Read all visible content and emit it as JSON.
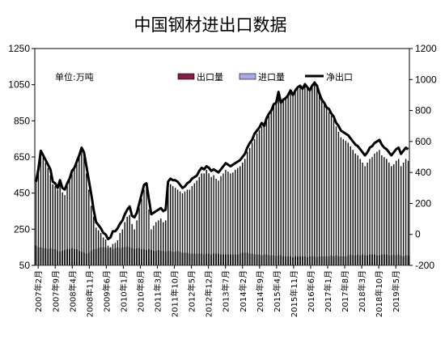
{
  "chart_data": {
    "type": "bar",
    "title": "中国钢材进出口数据",
    "unit_label": "单位:万吨",
    "legend": {
      "placement": "top",
      "entries": [
        {
          "key": "export",
          "label": "出口量",
          "mark": "bar",
          "color": "#8b1a4a"
        },
        {
          "key": "import",
          "label": "进口量",
          "mark": "bar",
          "color": "#a9a9ee"
        },
        {
          "key": "net",
          "label": "净出口",
          "mark": "line",
          "color": "#000000"
        }
      ]
    },
    "left_axis": {
      "min": 50,
      "max": 1250,
      "ticks": [
        50,
        250,
        450,
        650,
        850,
        1050,
        1250
      ]
    },
    "right_axis": {
      "min": -200,
      "max": 1200,
      "ticks": [
        -200,
        0,
        200,
        400,
        600,
        800,
        1000,
        1200
      ]
    },
    "x_labels": [
      "2007年2月",
      "2007年9月",
      "2008年4月",
      "2008年11月",
      "2009年6月",
      "2010年1月",
      "2010年8月",
      "2011年3月",
      "2011年10月",
      "2012年5月",
      "2012年12月",
      "2013年7月",
      "2014年2月",
      "2014年9月",
      "2015年4月",
      "2015年11月",
      "2016年6月",
      "2017年1月",
      "2017年8月",
      "2018年3月",
      "2018年10月",
      "2019年5月"
    ],
    "series": [
      {
        "key": "export",
        "name": "出口量",
        "axis": "left",
        "values": [
          530,
          565,
          680,
          655,
          620,
          590,
          550,
          500,
          490,
          470,
          520,
          455,
          440,
          490,
          520,
          560,
          600,
          640,
          660,
          690,
          650,
          560,
          470,
          380,
          320,
          260,
          245,
          230,
          205,
          195,
          160,
          150,
          170,
          175,
          190,
          230,
          250,
          290,
          320,
          330,
          280,
          250,
          300,
          370,
          420,
          470,
          480,
          360,
          250,
          270,
          290,
          300,
          310,
          290,
          300,
          480,
          500,
          490,
          480,
          470,
          460,
          450,
          460,
          470,
          470,
          490,
          505,
          520,
          540,
          560,
          560,
          580,
          560,
          540,
          550,
          530,
          520,
          545,
          560,
          580,
          570,
          560,
          565,
          580,
          590,
          600,
          620,
          640,
          680,
          700,
          730,
          750,
          780,
          800,
          820,
          820,
          850,
          880,
          900,
          940,
          950,
          1000,
          950,
          960,
          980,
          1000,
          1020,
          990,
          1020,
          1040,
          1050,
          1040,
          1060,
          1040,
          1020,
          1050,
          1070,
          1050,
          1000,
          960,
          940,
          920,
          900,
          880,
          860,
          820,
          790,
          760,
          750,
          740,
          730,
          710,
          690,
          670,
          660,
          640,
          620,
          600,
          620,
          640,
          650,
          670,
          680,
          690,
          660,
          650,
          640,
          620,
          600,
          610,
          630,
          640,
          600,
          620,
          640,
          630
        ],
        "note": "monthly"
      },
      {
        "key": "import",
        "name": "进口量",
        "axis": "left",
        "values": [
          160,
          150,
          150,
          145,
          145,
          140,
          145,
          140,
          140,
          130,
          125,
          130,
          135,
          140,
          140,
          145,
          140,
          140,
          130,
          125,
          120,
          115,
          120,
          130,
          140,
          140,
          145,
          150,
          150,
          150,
          145,
          150,
          140,
          145,
          150,
          145,
          150,
          150,
          155,
          150,
          145,
          140,
          145,
          145,
          140,
          140,
          135,
          140,
          135,
          130,
          130,
          135,
          130,
          130,
          125,
          130,
          130,
          125,
          125,
          130,
          125,
          120,
          120,
          120,
          115,
          115,
          115,
          115,
          115,
          115,
          110,
          115,
          115,
          110,
          115,
          115,
          115,
          110,
          110,
          110,
          110,
          110,
          110,
          110,
          110,
          115,
          120,
          120,
          120,
          115,
          115,
          110,
          110,
          110,
          105,
          110,
          110,
          105,
          105,
          105,
          100,
          105,
          105,
          100,
          100,
          100,
          100,
          95,
          100,
          100,
          100,
          100,
          100,
          95,
          100,
          100,
          100,
          95,
          100,
          100,
          100,
          100,
          100,
          105,
          100,
          105,
          100,
          100,
          100,
          100,
          105,
          110,
          105,
          105,
          110,
          105,
          110,
          105,
          105,
          110,
          110,
          110,
          105,
          105,
          110,
          110,
          110,
          105,
          105,
          110,
          105,
          110,
          105,
          100,
          105,
          105,
          100,
          100
        ]
      },
      {
        "key": "net",
        "name": "净出口",
        "axis": "right",
        "values": [
          340,
          420,
          540,
          510,
          480,
          450,
          420,
          340,
          330,
          300,
          350,
          300,
          290,
          330,
          360,
          410,
          430,
          470,
          510,
          560,
          530,
          440,
          350,
          260,
          160,
          80,
          60,
          40,
          10,
          0,
          -30,
          -20,
          20,
          20,
          40,
          70,
          90,
          130,
          160,
          180,
          120,
          110,
          140,
          200,
          260,
          320,
          330,
          230,
          130,
          140,
          150,
          160,
          170,
          150,
          160,
          340,
          360,
          350,
          350,
          340,
          320,
          300,
          310,
          330,
          340,
          360,
          370,
          380,
          410,
          430,
          420,
          440,
          430,
          410,
          420,
          410,
          400,
          420,
          440,
          460,
          450,
          440,
          450,
          460,
          470,
          480,
          500,
          520,
          560,
          590,
          610,
          650,
          670,
          690,
          720,
          700,
          750,
          780,
          800,
          840,
          850,
          920,
          850,
          870,
          880,
          900,
          930,
          900,
          930,
          950,
          960,
          940,
          970,
          950,
          930,
          960,
          980,
          960,
          910,
          870,
          850,
          820,
          810,
          780,
          760,
          720,
          700,
          670,
          660,
          650,
          640,
          620,
          600,
          580,
          570,
          550,
          530,
          510,
          530,
          560,
          570,
          590,
          600,
          610,
          580,
          560,
          550,
          530,
          510,
          530,
          550,
          560,
          520,
          540,
          560,
          550
        ]
      }
    ]
  }
}
